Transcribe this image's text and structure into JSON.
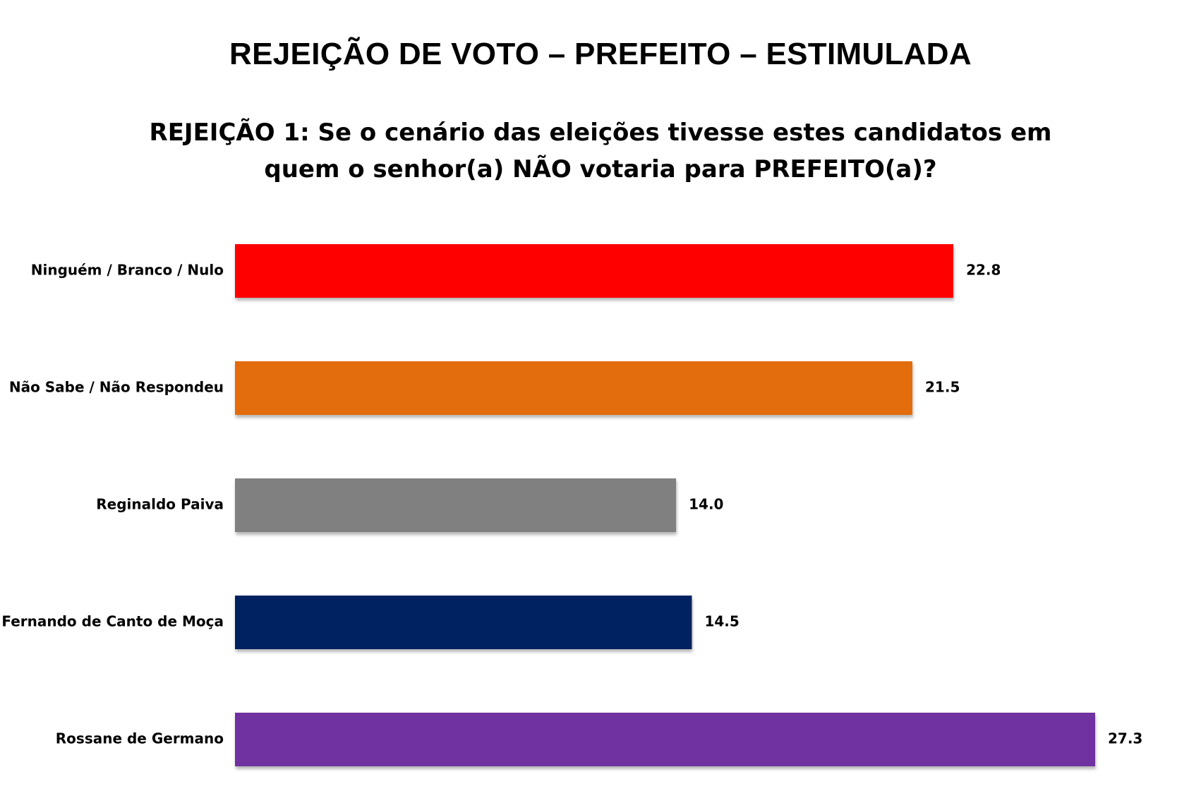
{
  "chart_data": {
    "type": "bar",
    "orientation": "horizontal",
    "title": "REJEIÇÃO DE VOTO – PREFEITO – ESTIMULADA",
    "subtitle": "REJEIÇÃO 1: Se o cenário das eleições tivesse estes candidatos em quem o senhor(a) NÃO votaria para PREFEITO(a)?",
    "categories": [
      "Ninguém / Branco / Nulo",
      "Não Sabe / Não Respondeu",
      "Reginaldo Paiva",
      "Fernando de Canto de Moça",
      "Rossane de Germano"
    ],
    "values": [
      22.8,
      21.5,
      14.0,
      14.5,
      27.3
    ],
    "value_labels": [
      "22.8",
      "21.5",
      "14.0",
      "14.5",
      "27.3"
    ],
    "colors": [
      "#ff0000",
      "#e36c0a",
      "#808080",
      "#002060",
      "#7030a0"
    ],
    "xlim": [
      0,
      27.3
    ],
    "grid": false,
    "legend": "none"
  }
}
